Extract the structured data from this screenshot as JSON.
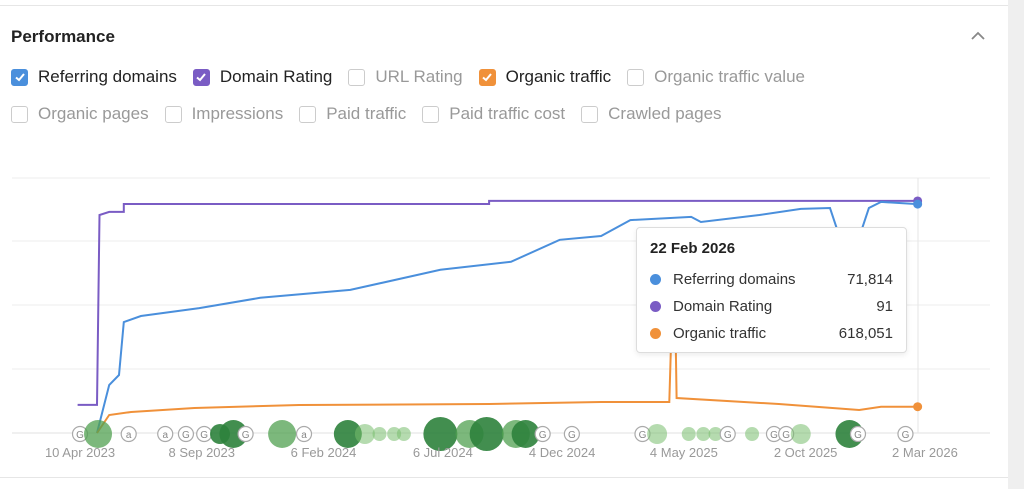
{
  "section": {
    "title": "Performance"
  },
  "metrics_row1": [
    {
      "label": "Referring domains",
      "checked": true,
      "color": "#4a8fdc"
    },
    {
      "label": "Domain Rating",
      "checked": true,
      "color": "#7a5cc4"
    },
    {
      "label": "URL Rating",
      "checked": false,
      "color": "#ccc"
    },
    {
      "label": "Organic traffic",
      "checked": true,
      "color": "#f0913a"
    },
    {
      "label": "Organic traffic value",
      "checked": false,
      "color": "#ccc"
    }
  ],
  "metrics_row2": [
    {
      "label": "Organic pages",
      "checked": false
    },
    {
      "label": "Impressions",
      "checked": false
    },
    {
      "label": "Paid traffic",
      "checked": false
    },
    {
      "label": "Paid traffic cost",
      "checked": false
    },
    {
      "label": "Crawled pages",
      "checked": false
    }
  ],
  "tooltip": {
    "date": "22 Feb 2026",
    "rows": [
      {
        "label": "Referring domains",
        "value": "71,814",
        "color": "#4a8fdc"
      },
      {
        "label": "Domain Rating",
        "value": "91",
        "color": "#7a5cc4"
      },
      {
        "label": "Organic traffic",
        "value": "618,051",
        "color": "#f0913a"
      }
    ]
  },
  "chart_data": {
    "type": "line",
    "x_unit": "months since 10 Apr 2023",
    "xlim": [
      -0.1,
      34.7
    ],
    "x_ticks": [
      {
        "t": 0,
        "label": "10 Apr 2023"
      },
      {
        "t": 5.0,
        "label": "8 Sep 2023"
      },
      {
        "t": 10.0,
        "label": "6 Feb 2024"
      },
      {
        "t": 14.9,
        "label": "6 Jul 2024"
      },
      {
        "t": 19.8,
        "label": "4 Dec 2024"
      },
      {
        "t": 24.8,
        "label": "4 May 2025"
      },
      {
        "t": 29.8,
        "label": "2 Oct 2025"
      },
      {
        "t": 34.7,
        "label": "2 Mar 2026"
      }
    ],
    "grid": true,
    "series": [
      {
        "name": "Domain Rating",
        "color": "#7a5cc4",
        "ylim": [
          0,
          100
        ],
        "points": [
          [
            -0.1,
            11
          ],
          [
            0.7,
            11
          ],
          [
            0.8,
            85.5
          ],
          [
            1.2,
            86.7
          ],
          [
            1.8,
            86.7
          ],
          [
            1.8,
            89.8
          ],
          [
            16.8,
            89.8
          ],
          [
            16.8,
            91
          ],
          [
            34.4,
            91
          ]
        ]
      },
      {
        "name": "Referring domains",
        "color": "#4a8fdc",
        "ylim": [
          0,
          80000
        ],
        "points": [
          [
            0.7,
            0
          ],
          [
            1.2,
            15060
          ],
          [
            1.6,
            18200
          ],
          [
            1.8,
            34800
          ],
          [
            2.5,
            36700
          ],
          [
            4.9,
            39200
          ],
          [
            7.4,
            42400
          ],
          [
            11.1,
            44900
          ],
          [
            14.8,
            51200
          ],
          [
            17.7,
            53700
          ],
          [
            19.7,
            60600
          ],
          [
            21.4,
            61800
          ],
          [
            22.6,
            66800
          ],
          [
            25.1,
            67800
          ],
          [
            25.5,
            66200
          ],
          [
            27.9,
            68400
          ],
          [
            29.6,
            70300
          ],
          [
            30.8,
            70600
          ],
          [
            31.1,
            63700
          ],
          [
            32.1,
            63700
          ],
          [
            32.4,
            70600
          ],
          [
            32.9,
            72500
          ],
          [
            34.4,
            71814
          ]
        ]
      },
      {
        "name": "Organic traffic",
        "color": "#f0913a",
        "ylim": [
          0,
          6000000
        ],
        "points": [
          [
            0.7,
            0
          ],
          [
            1.2,
            423500
          ],
          [
            2.1,
            494000
          ],
          [
            4.7,
            588000
          ],
          [
            9.0,
            659000
          ],
          [
            16.8,
            682000
          ],
          [
            21.4,
            729000
          ],
          [
            24.2,
            729000
          ],
          [
            24.4,
            4541000
          ],
          [
            24.5,
            823000
          ],
          [
            28.7,
            682000
          ],
          [
            32.0,
            541000
          ],
          [
            32.9,
            618051
          ],
          [
            34.4,
            618051
          ]
        ]
      }
    ],
    "annotations": [
      {
        "t": 0,
        "kind": "google",
        "label": "G"
      },
      {
        "t": 0.74,
        "kind": "bubble",
        "size": 3,
        "shade": "mid"
      },
      {
        "t": 2.0,
        "kind": "ahrefs",
        "label": "a"
      },
      {
        "t": 3.5,
        "kind": "ahrefs",
        "label": "a"
      },
      {
        "t": 4.35,
        "kind": "google",
        "label": "G"
      },
      {
        "t": 5.1,
        "kind": "google",
        "label": "G"
      },
      {
        "t": 5.75,
        "kind": "bubble",
        "size": 2,
        "shade": "dark"
      },
      {
        "t": 6.3,
        "kind": "bubble",
        "size": 3,
        "shade": "dark"
      },
      {
        "t": 6.8,
        "kind": "google",
        "label": "G"
      },
      {
        "t": 8.3,
        "kind": "bubble",
        "size": 3,
        "shade": "mid"
      },
      {
        "t": 9.2,
        "kind": "ahrefs",
        "label": "a"
      },
      {
        "t": 11.0,
        "kind": "bubble",
        "size": 3,
        "shade": "dark"
      },
      {
        "t": 11.7,
        "kind": "bubble",
        "size": 2,
        "shade": "light"
      },
      {
        "t": 12.3,
        "kind": "bubble",
        "size": 1,
        "shade": "light"
      },
      {
        "t": 12.9,
        "kind": "bubble",
        "size": 1,
        "shade": "light"
      },
      {
        "t": 13.3,
        "kind": "bubble",
        "size": 1,
        "shade": "light"
      },
      {
        "t": 14.8,
        "kind": "bubble",
        "size": 4,
        "shade": "dark"
      },
      {
        "t": 16.0,
        "kind": "bubble",
        "size": 3,
        "shade": "mid"
      },
      {
        "t": 16.7,
        "kind": "bubble",
        "size": 4,
        "shade": "dark"
      },
      {
        "t": 17.9,
        "kind": "bubble",
        "size": 3,
        "shade": "mid"
      },
      {
        "t": 18.3,
        "kind": "bubble",
        "size": 3,
        "shade": "dark"
      },
      {
        "t": 19.0,
        "kind": "google",
        "label": "G"
      },
      {
        "t": 20.2,
        "kind": "google",
        "label": "G"
      },
      {
        "t": 23.1,
        "kind": "google",
        "label": "G"
      },
      {
        "t": 23.7,
        "kind": "bubble",
        "size": 2,
        "shade": "light"
      },
      {
        "t": 25.0,
        "kind": "bubble",
        "size": 1,
        "shade": "light"
      },
      {
        "t": 25.6,
        "kind": "bubble",
        "size": 1,
        "shade": "light"
      },
      {
        "t": 26.1,
        "kind": "bubble",
        "size": 1,
        "shade": "light"
      },
      {
        "t": 26.6,
        "kind": "google",
        "label": "G"
      },
      {
        "t": 27.6,
        "kind": "bubble",
        "size": 1,
        "shade": "light"
      },
      {
        "t": 28.5,
        "kind": "google",
        "label": "G"
      },
      {
        "t": 29.0,
        "kind": "google",
        "label": "G"
      },
      {
        "t": 29.6,
        "kind": "bubble",
        "size": 2,
        "shade": "light"
      },
      {
        "t": 31.6,
        "kind": "bubble",
        "size": 3,
        "shade": "dark"
      },
      {
        "t": 31.95,
        "kind": "google",
        "label": "G"
      },
      {
        "t": 33.9,
        "kind": "google",
        "label": "G"
      }
    ]
  }
}
